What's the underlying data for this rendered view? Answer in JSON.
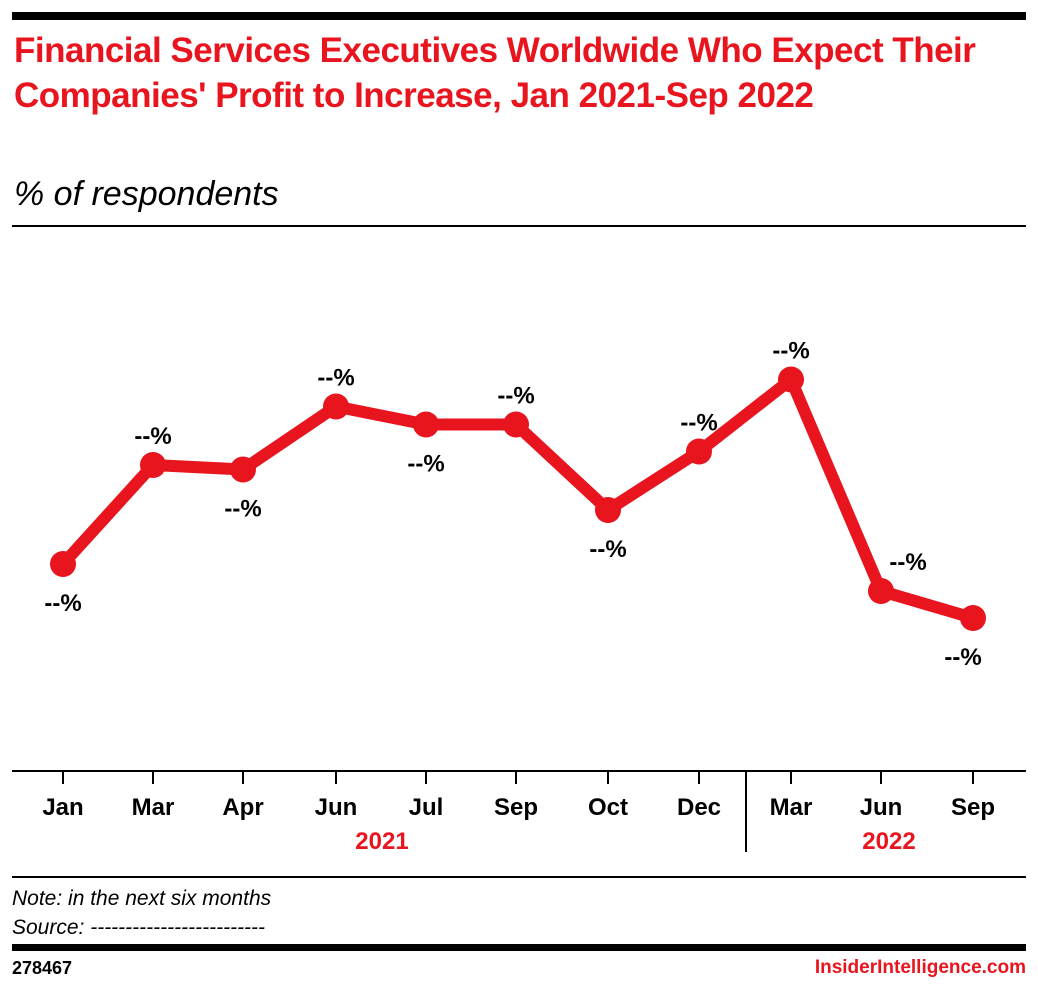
{
  "header": {
    "title": "Financial Services Executives Worldwide Who Expect Their Companies' Profit to Increase, Jan 2021-Sep 2022",
    "subtitle": "% of respondents"
  },
  "chart_data": {
    "type": "line",
    "categories": [
      "Jan",
      "Mar",
      "Apr",
      "Jun",
      "Jul",
      "Sep",
      "Oct",
      "Dec",
      "Mar",
      "Jun",
      "Sep"
    ],
    "groups": [
      {
        "label": "2021",
        "categories": [
          "Jan",
          "Mar",
          "Apr",
          "Jun",
          "Jul",
          "Sep",
          "Oct",
          "Dec"
        ]
      },
      {
        "label": "2022",
        "categories": [
          "Mar",
          "Jun",
          "Sep"
        ]
      }
    ],
    "series": [
      {
        "values": [
          34,
          45,
          44.5,
          51.5,
          49.5,
          49.5,
          40,
          46.5,
          54.5,
          31,
          28
        ],
        "data_labels": [
          "--%",
          "--%",
          "--%",
          "--%",
          "--%",
          "--%",
          "--%",
          "--%",
          "--%",
          "--%",
          "--%"
        ],
        "color": "#e8141e"
      }
    ],
    "ylim": [
      11,
      70
    ],
    "grid": false,
    "legend": "none"
  },
  "footer": {
    "note": "Note: in the next six months",
    "source": "Source: -------------------------",
    "chart_id": "278467",
    "brand": "InsiderIntelligence.com"
  }
}
